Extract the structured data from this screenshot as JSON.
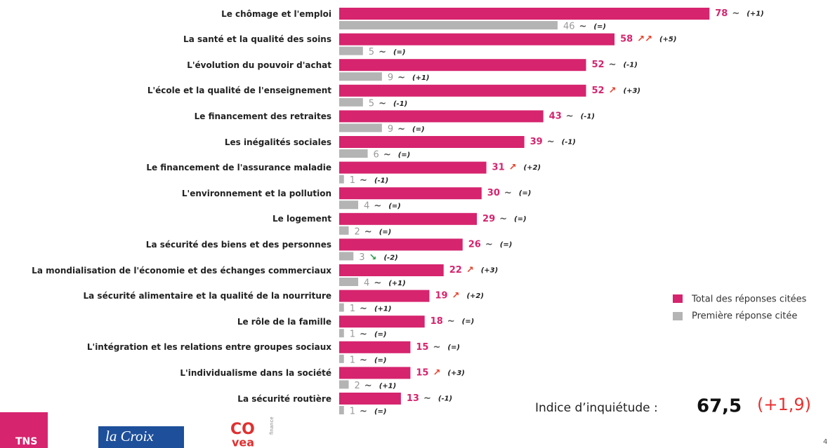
{
  "chart_data": {
    "type": "bar",
    "orientation": "horizontal",
    "categories": [
      "Le chômage et l'emploi",
      "La santé et la qualité des soins",
      "L'évolution du pouvoir d'achat",
      "L'école et la qualité de l'enseignement",
      "Le financement des retraites",
      "Les inégalités sociales",
      "Le financement de l'assurance maladie",
      "L'environnement et la pollution",
      "Le logement",
      "La sécurité des biens et des personnes",
      "La mondialisation de l'économie et des échanges commerciaux",
      "La sécurité alimentaire et la qualité de la nourriture",
      "Le rôle de la famille",
      "L'intégration et les relations entre groupes sociaux",
      "L'individualisme dans la société",
      "La sécurité routière"
    ],
    "series": [
      {
        "name": "Total des réponses citées",
        "color": "#d6246e",
        "values": [
          78,
          58,
          52,
          52,
          43,
          39,
          31,
          30,
          29,
          26,
          22,
          19,
          18,
          15,
          15,
          13
        ],
        "trends": [
          "~",
          "↗↗",
          "~",
          "↗",
          "~",
          "~",
          "↗",
          "~",
          "~",
          "~",
          "↗",
          "↗",
          "~",
          "~",
          "↗",
          "~"
        ],
        "changes": [
          "(+1)",
          "(+5)",
          "(-1)",
          "(+3)",
          "(-1)",
          "(-1)",
          "(+2)",
          "(=)",
          "(=)",
          "(=)",
          "(+3)",
          "(+2)",
          "(=)",
          "(=)",
          "(+3)",
          "(-1)"
        ]
      },
      {
        "name": "Première réponse citée",
        "color": "#b4b4b4",
        "values": [
          46,
          5,
          9,
          5,
          9,
          6,
          1,
          4,
          2,
          3,
          4,
          1,
          1,
          1,
          2,
          1
        ],
        "trends": [
          "~",
          "~",
          "~",
          "~",
          "~",
          "~",
          "~",
          "~",
          "~",
          "↘",
          "~",
          "~",
          "~",
          "~",
          "~",
          "~"
        ],
        "changes": [
          "(=)",
          "(=)",
          "(+1)",
          "(-1)",
          "(=)",
          "(=)",
          "(-1)",
          "(=)",
          "(=)",
          "(-2)",
          "(+1)",
          "(+1)",
          "(=)",
          "(=)",
          "(+1)",
          "(=)"
        ]
      }
    ],
    "trend_colors": {
      "~": "#555555",
      "↗": "#e8402a",
      "↘": "#2a9a4a"
    },
    "xlim": [
      0,
      100
    ],
    "legend": "right",
    "annotation": {
      "label": "Indice d’inquiétude :",
      "value": "67,5",
      "change": "(+1,9)"
    },
    "footer": {
      "logos": [
        "TNS",
        "la Croix",
        "CO",
        "vea",
        "finance"
      ],
      "page": "4"
    }
  }
}
